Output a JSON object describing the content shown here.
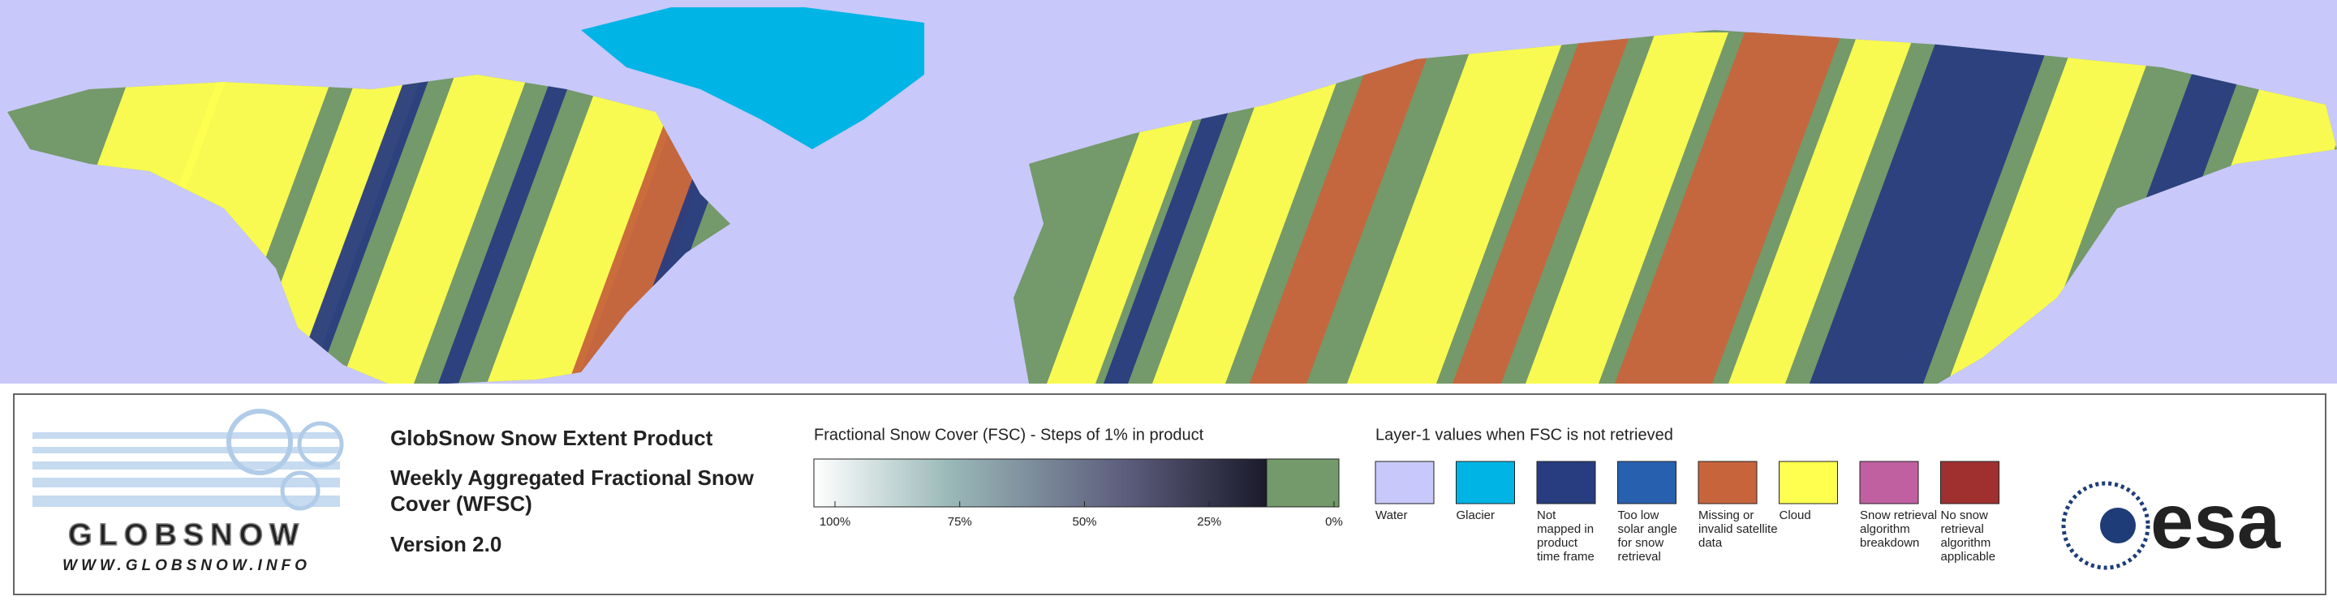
{
  "header": {
    "title": "GlobSnow Snow Extent Product",
    "subtitle_lines": [
      "Weekly Aggregated Fractional Snow",
      "Cover (WFSC)"
    ],
    "version": "Version 2.0"
  },
  "logo": {
    "name": "GLOBSNOW",
    "url": "WWW.GLOBSNOW.INFO"
  },
  "fsc_legend": {
    "title": "Fractional Snow Cover (FSC) - Steps of 1% in product",
    "ticks": [
      {
        "value": 100,
        "label": "100%"
      },
      {
        "value": 75,
        "label": "75%"
      },
      {
        "value": 50,
        "label": "50%"
      },
      {
        "value": 25,
        "label": "25%"
      },
      {
        "value": 0,
        "label": "0%"
      }
    ]
  },
  "layer1_legend": {
    "title": "Layer-1 values when FSC is not retrieved",
    "items": [
      {
        "label_lines": [
          "Water"
        ],
        "color": "#c8c8fa"
      },
      {
        "label_lines": [
          "Glacier"
        ],
        "color": "#00b4e6"
      },
      {
        "label_lines": [
          "Not",
          "mapped in",
          "product",
          "time frame"
        ],
        "color": "#283c80"
      },
      {
        "label_lines": [
          "Too low",
          "solar angle",
          "for snow",
          "retrieval"
        ],
        "color": "#2860b0"
      },
      {
        "label_lines": [
          "Missing or",
          "invalid satellite",
          "data"
        ],
        "color": "#c8643c"
      },
      {
        "label_lines": [
          "Cloud"
        ],
        "color": "#ffff50"
      },
      {
        "label_lines": [
          "Snow retrieval",
          "algorithm",
          "breakdown"
        ],
        "color": "#c060a0"
      },
      {
        "label_lines": [
          "No snow",
          "retrieval",
          "algorithm",
          "applicable"
        ],
        "color": "#a03030"
      }
    ]
  },
  "agency": "esa"
}
